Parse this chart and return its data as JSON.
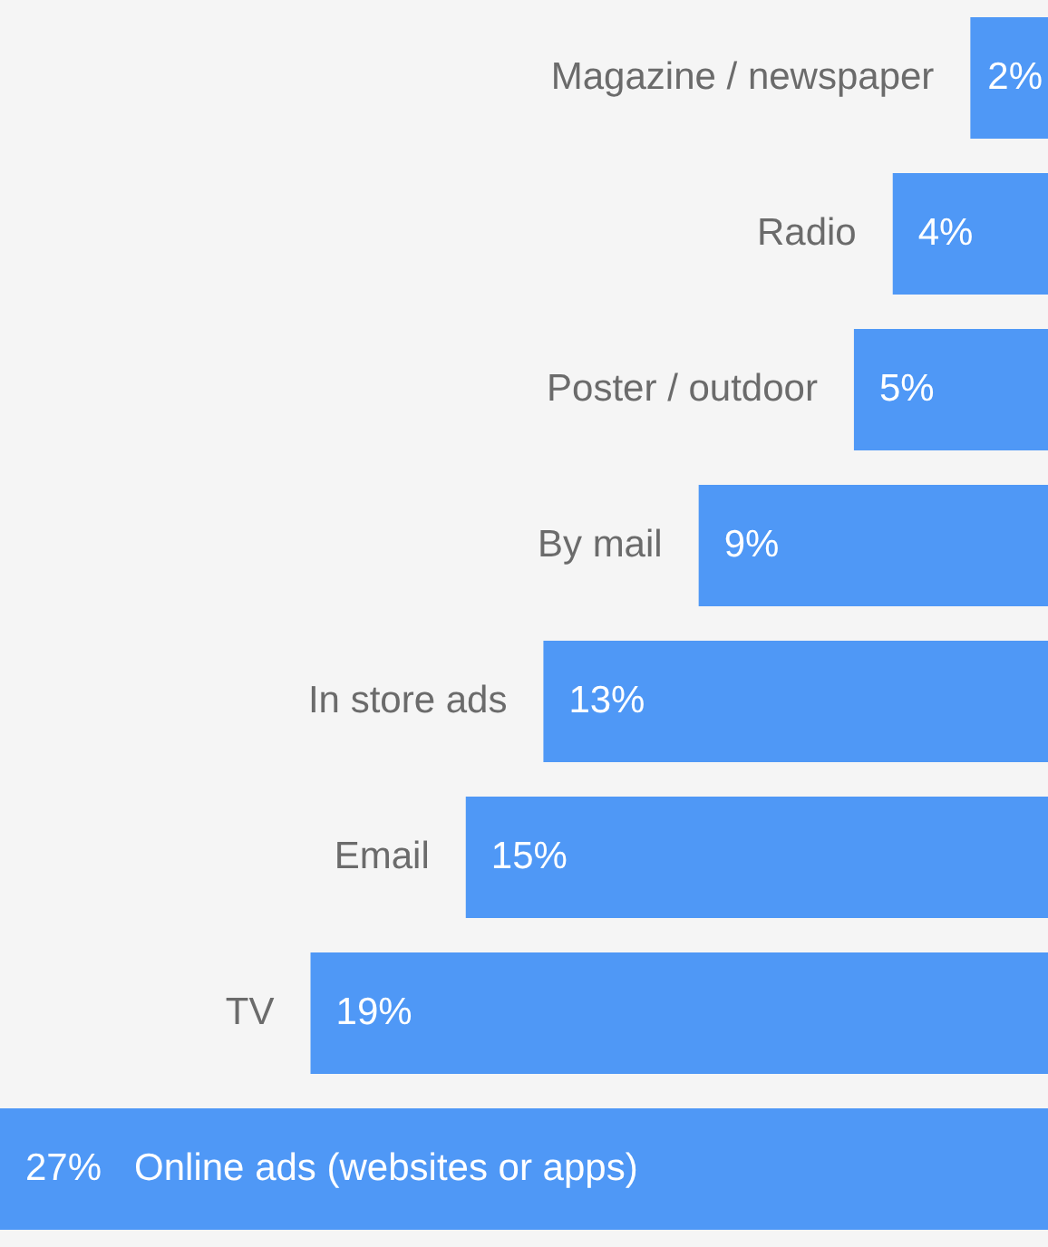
{
  "chart_data": {
    "type": "bar",
    "orientation": "horizontal",
    "categories": [
      "Magazine / newspaper",
      "Radio",
      "Poster / outdoor",
      "By mail",
      "In store ads",
      "Email",
      "TV",
      "Online ads (websites or apps)"
    ],
    "values": [
      2,
      4,
      5,
      9,
      13,
      15,
      19,
      27
    ],
    "value_labels": [
      "2%",
      "4%",
      "5%",
      "9%",
      "13%",
      "15%",
      "19%",
      "27%"
    ],
    "color": "#4f98f6"
  }
}
